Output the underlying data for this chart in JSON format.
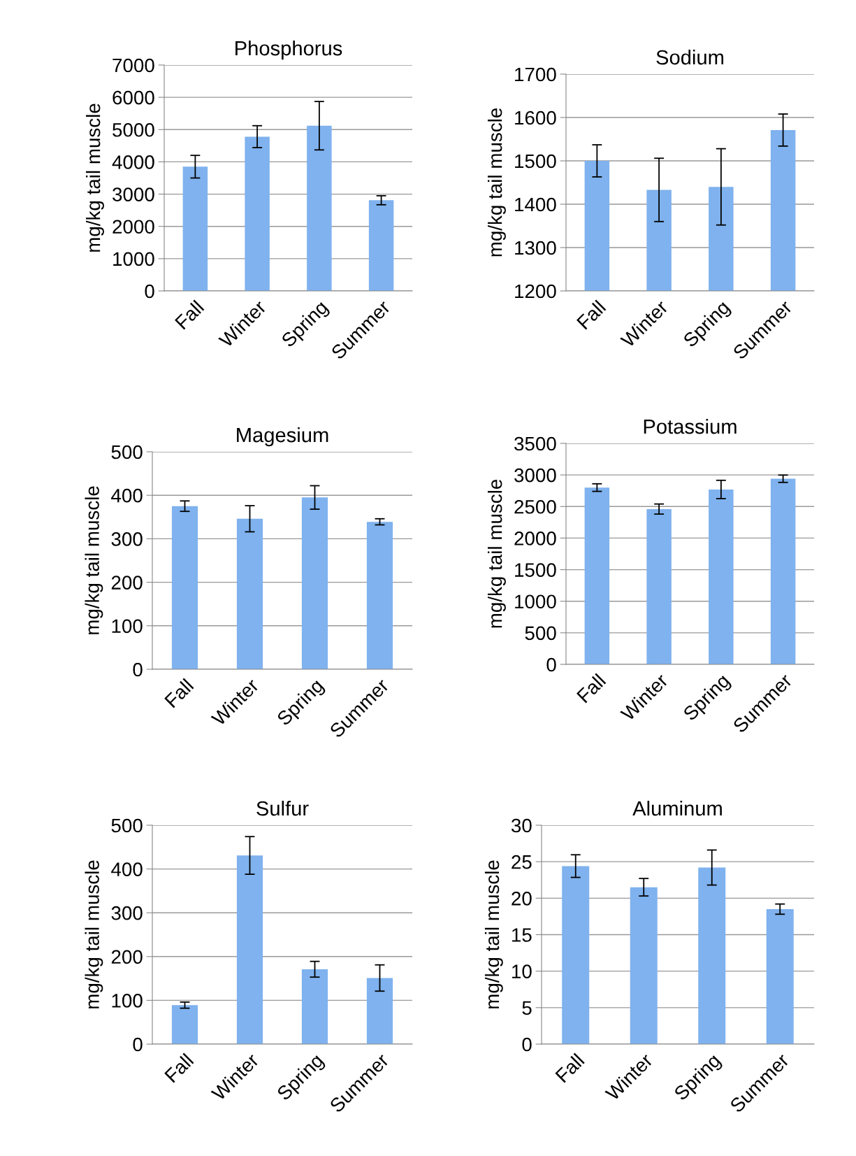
{
  "chart_data": [
    {
      "type": "bar",
      "title": "Phosphorus",
      "ylabel": "mg/kg tail muscle",
      "categories": [
        "Fall",
        "Winter",
        "Spring",
        "Summer"
      ],
      "values": [
        3850,
        4780,
        5120,
        2810
      ],
      "errors": [
        350,
        340,
        750,
        140
      ],
      "color": "#7fb2ee",
      "ylim": [
        0,
        7000
      ],
      "yticks": [
        0,
        1000,
        2000,
        3000,
        4000,
        5000,
        6000,
        7000
      ],
      "grid": "y"
    },
    {
      "type": "bar",
      "title": "Sodium",
      "ylabel": "mg/kg tail muscle",
      "categories": [
        "Fall",
        "Winter",
        "Spring",
        "Summer"
      ],
      "values": [
        1500,
        1433,
        1440,
        1571
      ],
      "errors": [
        37,
        73,
        88,
        37
      ],
      "color": "#7fb2ee",
      "ylim": [
        1200,
        1700
      ],
      "yticks": [
        1200,
        1300,
        1400,
        1500,
        1600,
        1700
      ],
      "grid": "y"
    },
    {
      "type": "bar",
      "title": "Magesium",
      "ylabel": "mg/kg tail muscle",
      "categories": [
        "Fall",
        "Winter",
        "Spring",
        "Summer"
      ],
      "values": [
        375,
        346,
        395,
        339
      ],
      "errors": [
        12,
        30,
        27,
        7
      ],
      "color": "#7fb2ee",
      "ylim": [
        0,
        500
      ],
      "yticks": [
        0,
        100,
        200,
        300,
        400,
        500
      ],
      "grid": "y"
    },
    {
      "type": "bar",
      "title": "Potassium",
      "ylabel": "mg/kg tail muscle",
      "categories": [
        "Fall",
        "Winter",
        "Spring",
        "Summer"
      ],
      "values": [
        2800,
        2460,
        2770,
        2940
      ],
      "errors": [
        60,
        80,
        145,
        58
      ],
      "color": "#7fb2ee",
      "ylim": [
        0,
        3500
      ],
      "yticks": [
        0,
        500,
        1000,
        1500,
        2000,
        2500,
        3000,
        3500
      ],
      "grid": "y"
    },
    {
      "type": "bar",
      "title": "Sulfur",
      "ylabel": "mg/kg tail muscle",
      "categories": [
        "Fall",
        "Winter",
        "Spring",
        "Summer"
      ],
      "values": [
        89,
        431,
        171,
        151
      ],
      "errors": [
        7,
        43,
        18,
        30
      ],
      "color": "#7fb2ee",
      "ylim": [
        0,
        500
      ],
      "yticks": [
        0,
        100,
        200,
        300,
        400,
        500
      ],
      "grid": "y"
    },
    {
      "type": "bar",
      "title": "Aluminum",
      "ylabel": "mg/kg tail muscle",
      "categories": [
        "Fall",
        "Winter",
        "Spring",
        "Summer"
      ],
      "values": [
        24.4,
        21.5,
        24.2,
        18.5
      ],
      "errors": [
        1.55,
        1.2,
        2.4,
        0.7
      ],
      "color": "#7fb2ee",
      "ylim": [
        0,
        30
      ],
      "yticks": [
        0,
        5,
        10,
        15,
        20,
        25,
        30
      ],
      "grid": "y"
    }
  ]
}
